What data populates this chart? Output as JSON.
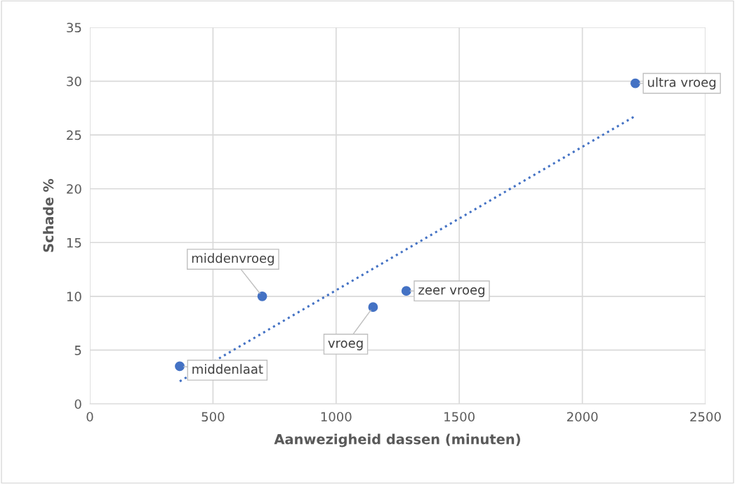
{
  "chart_data": {
    "type": "scatter",
    "xlabel": "Aanwezigheid dassen (minuten)",
    "ylabel": "Schade %",
    "series": [
      {
        "color": "#4472c4",
        "x": [
          365,
          700,
          1150,
          1285,
          2215
        ],
        "values": [
          3.5,
          10,
          9,
          10.5,
          29.8
        ]
      },
      {
        "type": "line",
        "color": "#4472c4",
        "x": [
          365,
          2210
        ],
        "values": [
          2.1,
          26.7
        ],
        "line_style": "dotted",
        "marker": "none"
      }
    ],
    "annotations": [
      {
        "text": "middenlaat",
        "x": 365,
        "y": 3.5
      },
      {
        "text": "middenvroeg",
        "x": 700,
        "y": 10
      },
      {
        "text": "vroeg",
        "x": 1150,
        "y": 9
      },
      {
        "text": "zeer vroeg",
        "x": 1285,
        "y": 10.5
      },
      {
        "text": "ultra vroeg",
        "x": 2215,
        "y": 29.8
      }
    ],
    "xlim": [
      0,
      2500
    ],
    "xticks": [
      0,
      500,
      1000,
      1500,
      2000,
      2500
    ],
    "ylim": [
      0,
      35
    ],
    "yticks": [
      0,
      5,
      10,
      15,
      20,
      25,
      30,
      35
    ],
    "grid": true,
    "legend": false,
    "marker": "circle"
  }
}
